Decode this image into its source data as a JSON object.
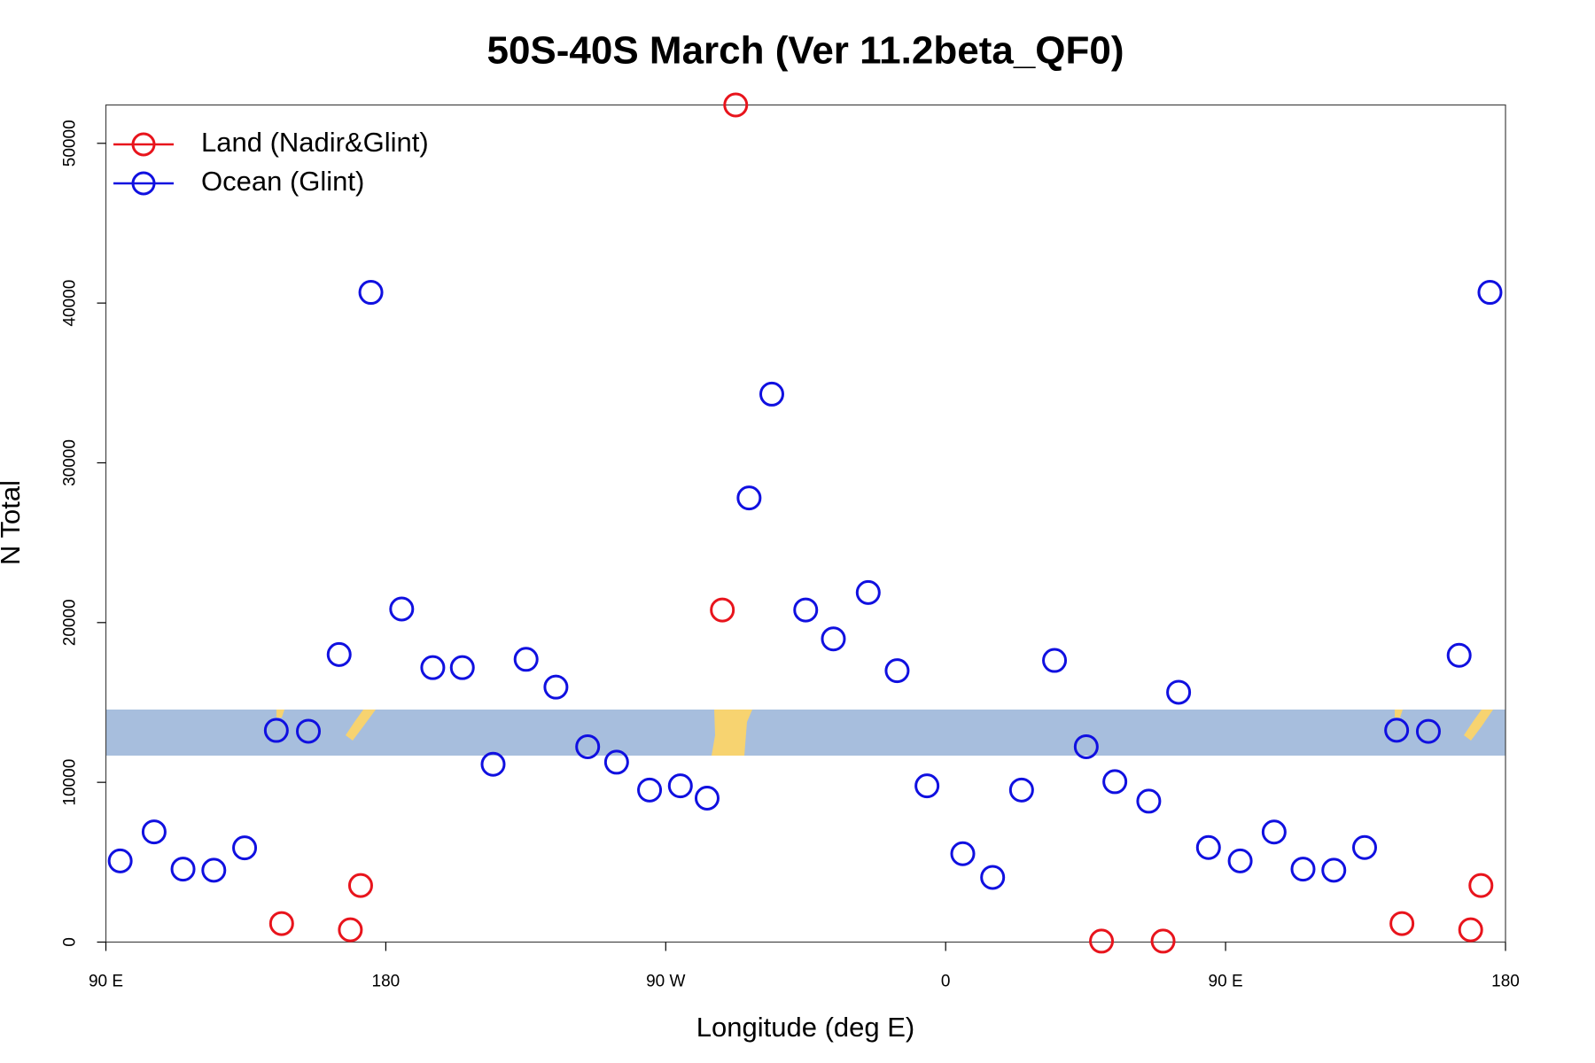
{
  "chart_data": {
    "type": "scatter",
    "title": "50S-40S March (Ver 11.2beta_QF0)",
    "xlabel": "Longitude (deg E)",
    "ylabel": "N Total",
    "xlim": [
      90,
      540
    ],
    "xticks": [
      {
        "value": 90,
        "label": "90 E"
      },
      {
        "value": 180,
        "label": "180"
      },
      {
        "value": 270,
        "label": "90 W"
      },
      {
        "value": 360,
        "label": "0"
      },
      {
        "value": 450,
        "label": "90 E"
      },
      {
        "value": 540,
        "label": "180"
      }
    ],
    "ylim": [
      0,
      52400
    ],
    "yticks": [
      0,
      10000,
      20000,
      30000,
      40000,
      50000
    ],
    "legend": "top-left",
    "series": [
      {
        "name": "Land (Nadir&Glint)",
        "color": "#e8141c",
        "x": [
          146.5,
          168.6,
          171.9,
          292.5,
          288.2,
          410.1,
          429.9,
          506.7,
          528.8,
          532.1
        ],
        "values": [
          1160,
          770,
          3540,
          52400,
          20790,
          60,
          60,
          1160,
          770,
          3540
        ]
      },
      {
        "name": "Ocean (Glint)",
        "color": "#1010e0",
        "x": [
          94.6,
          105.5,
          114.8,
          124.7,
          134.6,
          144.8,
          155.1,
          165,
          175.2,
          185.1,
          195.1,
          204.6,
          214.5,
          225.1,
          234.7,
          244.9,
          254.2,
          264.8,
          274.7,
          283.3,
          296.8,
          304.1,
          315,
          323.9,
          335.1,
          344.4,
          354,
          365.5,
          375.1,
          384.4,
          395,
          405.2,
          414.4,
          425.3,
          434.9,
          444.5,
          454.7,
          465.6,
          474.9,
          484.8,
          494.7,
          505,
          515.2,
          525.1,
          535
        ],
        "values": [
          5080,
          6900,
          4570,
          4500,
          5900,
          13250,
          13200,
          18000,
          40670,
          20850,
          17180,
          17180,
          11130,
          17700,
          15960,
          12230,
          11260,
          9520,
          9780,
          9010,
          27800,
          34300,
          20790,
          18980,
          21880,
          16990,
          9780,
          5530,
          4050,
          9520,
          17630,
          12230,
          10040,
          8820,
          15640,
          5920,
          5080,
          6890,
          4570,
          4500,
          5920,
          13260,
          13190,
          17950,
          40670
        ]
      }
    ]
  }
}
